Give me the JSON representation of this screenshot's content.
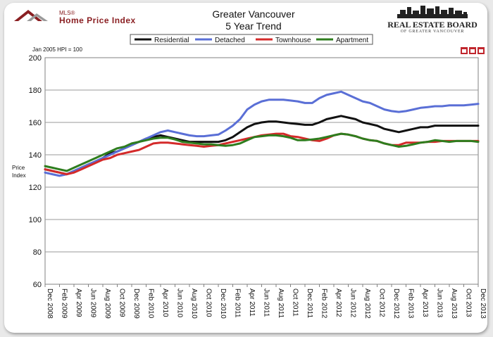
{
  "header": {
    "title_line1": "Greater Vancouver",
    "title_line2": "5 Year Trend",
    "mls_small": "MLS®",
    "mls_logo_text": "Home Price Index",
    "board_name": "REAL ESTATE BOARD",
    "board_sub": "OF GREATER VANCOUVER",
    "hpi_note": "Jan 2005 HPI = 100"
  },
  "colors": {
    "residential": "#111111",
    "detached": "#5a6fd6",
    "townhouse": "#d42a2a",
    "apartment": "#2e7d1e"
  },
  "chart_data": {
    "type": "line",
    "title": "Greater Vancouver 5 Year Trend",
    "xlabel": "",
    "ylabel": "Price Index",
    "ylim": [
      60,
      200
    ],
    "yticks": [
      60,
      80,
      100,
      120,
      140,
      160,
      180,
      200
    ],
    "grid": true,
    "legend_position": "top",
    "x": [
      "Dec 2008",
      "Jan 2009",
      "Feb 2009",
      "Mar 2009",
      "Apr 2009",
      "May 2009",
      "Jun 2009",
      "Jul 2009",
      "Aug 2009",
      "Sep 2009",
      "Oct 2009",
      "Nov 2009",
      "Dec 2009",
      "Jan 2010",
      "Feb 2010",
      "Mar 2010",
      "Apr 2010",
      "May 2010",
      "Jun 2010",
      "Jul 2010",
      "Aug 2010",
      "Sep 2010",
      "Oct 2010",
      "Nov 2010",
      "Dec 2010",
      "Jan 2011",
      "Feb 2011",
      "Mar 2011",
      "Apr 2011",
      "May 2011",
      "Jun 2011",
      "Jul 2011",
      "Aug 2011",
      "Sep 2011",
      "Oct 2011",
      "Nov 2011",
      "Dec 2011",
      "Jan 2012",
      "Feb 2012",
      "Mar 2012",
      "Apr 2012",
      "May 2012",
      "Jun 2012",
      "Jul 2012",
      "Aug 2012",
      "Sep 2012",
      "Oct 2012",
      "Nov 2012",
      "Dec 2012",
      "Jan 2013",
      "Feb 2013",
      "Mar 2013",
      "Apr 2013",
      "May 2013",
      "Jun 2013",
      "Jul 2013",
      "Aug 2013",
      "Sep 2013",
      "Oct 2013",
      "Nov 2013",
      "Dec 2013"
    ],
    "xtick_labels": [
      "Dec 2008",
      "Feb 2009",
      "Apr 2009",
      "Jun 2009",
      "Aug 2009",
      "Oct 2009",
      "Dec 2009",
      "Feb 2010",
      "Apr 2010",
      "Jun 2010",
      "Aug 2010",
      "Oct 2010",
      "Dec 2010",
      "Feb 2011",
      "Apr 2011",
      "Jun 2011",
      "Aug 2011",
      "Oct 2011",
      "Dec 2011",
      "Feb 2012",
      "Apr 2012",
      "Jun 2012",
      "Aug 2012",
      "Oct 2012",
      "Dec 2012",
      "Feb 2013",
      "Apr 2013",
      "Jun 2013",
      "Aug 2013",
      "Oct 2013",
      "Dec 2013"
    ],
    "series": [
      {
        "name": "Residential",
        "color_key": "residential",
        "values": [
          131,
          130,
          129,
          128,
          130,
          132,
          134,
          136,
          138,
          141,
          142,
          144,
          146,
          148,
          150,
          151,
          152,
          151,
          150,
          149,
          148,
          148,
          148,
          148,
          148,
          149,
          151,
          154,
          157,
          159,
          160,
          160.5,
          160.5,
          160,
          159.5,
          159,
          158.5,
          158.5,
          160,
          162,
          163,
          164,
          163,
          162,
          160,
          159,
          158,
          156,
          155,
          154,
          155,
          156,
          157,
          157,
          158,
          158,
          158,
          158,
          158,
          158,
          158
        ]
      },
      {
        "name": "Detached",
        "color_key": "detached",
        "values": [
          129,
          128,
          127,
          128,
          130,
          132,
          134,
          136,
          138,
          140,
          142,
          144,
          146,
          148,
          150,
          152,
          154,
          155,
          154,
          153,
          152,
          151.5,
          151.5,
          152,
          152.5,
          155,
          158,
          162,
          168,
          171,
          173,
          174,
          174,
          174,
          173.5,
          173,
          172,
          172,
          175,
          177,
          178,
          179,
          177,
          175,
          173,
          172,
          170,
          168,
          167,
          166.5,
          167,
          168,
          169,
          169.5,
          170,
          170,
          170.5,
          170.5,
          170.5,
          171,
          171.5
        ]
      },
      {
        "name": "Townhouse",
        "color_key": "townhouse",
        "values": [
          131,
          130,
          129,
          128,
          129,
          131,
          133,
          135,
          137,
          138,
          140,
          141,
          142,
          143,
          145,
          147,
          147.5,
          147.5,
          147,
          146.5,
          146,
          145.5,
          145,
          145.5,
          146,
          147,
          148,
          149,
          150,
          151,
          152,
          152.5,
          153,
          153,
          151.5,
          151,
          150,
          149,
          148.5,
          150,
          152,
          153,
          152.5,
          151.5,
          150,
          149,
          148.5,
          147,
          146,
          146,
          147.5,
          147.5,
          147.5,
          148,
          148,
          148.5,
          148.5,
          148.5,
          148.5,
          148.5,
          148.5
        ]
      },
      {
        "name": "Apartment",
        "color_key": "apartment",
        "values": [
          133,
          132,
          131,
          130,
          132,
          134,
          136,
          138,
          140,
          142,
          144,
          145,
          147,
          148,
          149,
          150,
          150.5,
          150.5,
          149.5,
          148,
          147.5,
          147,
          146.5,
          146.5,
          146,
          145.5,
          146,
          147,
          149,
          151,
          151.5,
          152,
          152,
          151.5,
          150.5,
          149,
          149,
          149.5,
          150,
          151,
          152,
          153,
          152.5,
          151.5,
          150,
          149,
          148.5,
          147,
          146,
          145,
          145.5,
          146.5,
          147.5,
          148,
          149,
          148.5,
          148,
          148.5,
          148.5,
          148.5,
          148
        ]
      }
    ]
  }
}
